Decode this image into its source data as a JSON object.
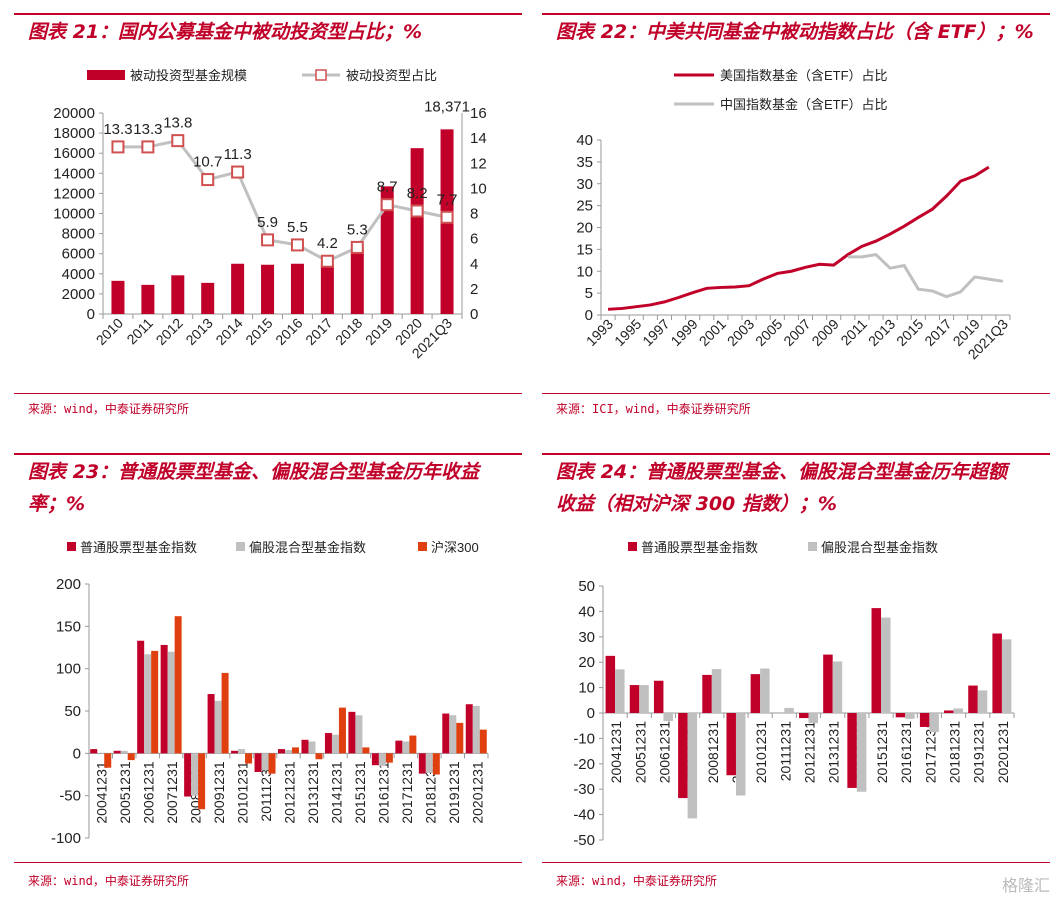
{
  "panels": [
    {
      "title": "图表 21：国内公募基金中被动投资型占比；%",
      "source": "来源：wind，中泰证券研究所"
    },
    {
      "title": "图表 22：中美共同基金中被动指数占比（含 ETF）；%",
      "source": "来源：ICI，wind，中泰证券研究所"
    },
    {
      "title_lines": [
        "图表 23：普通股票型基金、偏股混合型基金历年收益",
        "率；%"
      ],
      "source": "来源：wind，中泰证券研究所"
    },
    {
      "title_lines": [
        "图表 24：普通股票型基金、偏股混合型基金历年超额",
        "收益（相对沪深 300 指数）；%"
      ],
      "source": "来源：wind，中泰证券研究所"
    }
  ],
  "watermark": "格隆汇",
  "colors": {
    "red": "#c00029",
    "gray": "#c0c0c0",
    "orange": "#e04010",
    "marker": "#d05050"
  },
  "chart_data": [
    {
      "type": "bar+line",
      "categories": [
        "2010",
        "2011",
        "2012",
        "2013",
        "2014",
        "2015",
        "2016",
        "2017",
        "2018",
        "2019",
        "2020",
        "2021Q3"
      ],
      "series": [
        {
          "name": "被动投资型基金规模",
          "kind": "bar",
          "axis": "left",
          "values": [
            3300,
            2900,
            3850,
            3100,
            5000,
            4900,
            5000,
            4900,
            6500,
            12700,
            16500,
            18371
          ]
        },
        {
          "name": "被动投资型占比",
          "kind": "line",
          "axis": "right",
          "values": [
            13.3,
            13.3,
            13.8,
            10.7,
            11.3,
            5.9,
            5.5,
            4.2,
            5.3,
            8.7,
            8.2,
            7.7
          ]
        }
      ],
      "data_labels": [
        "13.3",
        "13.3",
        "13.8",
        "10.7",
        "11.3",
        "5.9",
        "5.5",
        "4.2",
        "5.3",
        "8.7",
        "8.2",
        "7.7"
      ],
      "bar_label_last": "18,371",
      "ylim": [
        0,
        20000
      ],
      "yticks": [
        0,
        2000,
        4000,
        6000,
        8000,
        10000,
        12000,
        14000,
        16000,
        18000,
        20000
      ],
      "y2lim": [
        0,
        16
      ],
      "y2ticks": [
        0,
        2,
        4,
        6,
        8,
        10,
        12,
        14,
        16
      ],
      "legend": "top"
    },
    {
      "type": "line",
      "categories": [
        "1993",
        "1994",
        "1995",
        "1996",
        "1997",
        "1998",
        "1999",
        "2000",
        "2001",
        "2002",
        "2003",
        "2004",
        "2005",
        "2006",
        "2007",
        "2008",
        "2009",
        "2010",
        "2011",
        "2012",
        "2013",
        "2014",
        "2015",
        "2016",
        "2017",
        "2018",
        "2019",
        "2020",
        "2021Q3"
      ],
      "tick_labels": [
        "1993",
        "1995",
        "1997",
        "1999",
        "2001",
        "2003",
        "2005",
        "2007",
        "2009",
        "2011",
        "2013",
        "2015",
        "2017",
        "2019",
        "2021Q3"
      ],
      "series": [
        {
          "name": "美国指数基金（含ETF）占比",
          "values": [
            1.3,
            1.5,
            1.9,
            2.3,
            3.0,
            4.0,
            5.1,
            6.1,
            6.3,
            6.4,
            6.7,
            8.2,
            9.5,
            10.0,
            10.9,
            11.6,
            11.4,
            13.8,
            15.7,
            16.9,
            18.5,
            20.3,
            22.3,
            24.2,
            27.2,
            30.6,
            31.8,
            33.8,
            null
          ]
        },
        {
          "name": "中国指数基金（含ETF）占比",
          "values": [
            null,
            null,
            null,
            null,
            null,
            null,
            null,
            null,
            null,
            null,
            null,
            null,
            null,
            null,
            null,
            null,
            null,
            13.3,
            13.3,
            13.8,
            10.7,
            11.3,
            5.9,
            5.5,
            4.2,
            5.3,
            8.7,
            8.2,
            7.7
          ]
        }
      ],
      "ylim": [
        0,
        40
      ],
      "yticks": [
        0,
        5,
        10,
        15,
        20,
        25,
        30,
        35,
        40
      ],
      "legend": "top"
    },
    {
      "type": "bar",
      "categories": [
        "20041231",
        "20051231",
        "20061231",
        "20071231",
        "20081231",
        "20091231",
        "20101231",
        "20111231",
        "20121231",
        "20131231",
        "20141231",
        "20151231",
        "20161231",
        "20171231",
        "20181231",
        "20191231",
        "20201231"
      ],
      "series": [
        {
          "name": "普通股票型基金指数",
          "values": [
            5,
            3,
            133,
            128,
            -51,
            70,
            3,
            -22,
            5,
            16,
            24,
            49,
            -14,
            15,
            -24,
            47,
            58
          ]
        },
        {
          "name": "偏股混合型基金指数",
          "values": [
            0,
            3,
            117,
            120,
            -50,
            62,
            5,
            -20,
            4,
            14,
            22,
            45,
            -15,
            14,
            -23,
            45,
            56
          ]
        },
        {
          "name": "沪深300",
          "values": [
            -17,
            -8,
            121,
            162,
            -66,
            95,
            -12,
            -24,
            7,
            -7,
            54,
            7,
            -11,
            21,
            -25,
            36,
            28
          ]
        }
      ],
      "ylim": [
        -100,
        200
      ],
      "yticks": [
        -100,
        -50,
        0,
        50,
        100,
        150,
        200
      ],
      "legend": "top"
    },
    {
      "type": "bar",
      "categories": [
        "20041231",
        "20051231",
        "20061231",
        "20071231",
        "20081231",
        "20091231",
        "20101231",
        "20111231",
        "20121231",
        "20131231",
        "20141231",
        "20151231",
        "20161231",
        "20171231",
        "20181231",
        "20191231",
        "20201231"
      ],
      "series": [
        {
          "name": "普通股票型基金指数",
          "values": [
            22.5,
            11,
            12.7,
            -33.5,
            15,
            -24.5,
            15.3,
            0,
            -2,
            23,
            -29.5,
            41.3,
            -1.7,
            -5.5,
            1,
            10.8,
            31.3
          ]
        },
        {
          "name": "偏股混合型基金指数",
          "values": [
            17.2,
            11,
            -3.2,
            -41.5,
            17.3,
            -32.5,
            17.5,
            2,
            -4,
            20.3,
            -31,
            37.6,
            -2.3,
            -7.5,
            1.8,
            8.9,
            29
          ]
        }
      ],
      "ylim": [
        -50,
        50
      ],
      "yticks": [
        -50,
        -40,
        -30,
        -20,
        -10,
        0,
        10,
        20,
        30,
        40,
        50
      ],
      "legend": "top"
    }
  ]
}
